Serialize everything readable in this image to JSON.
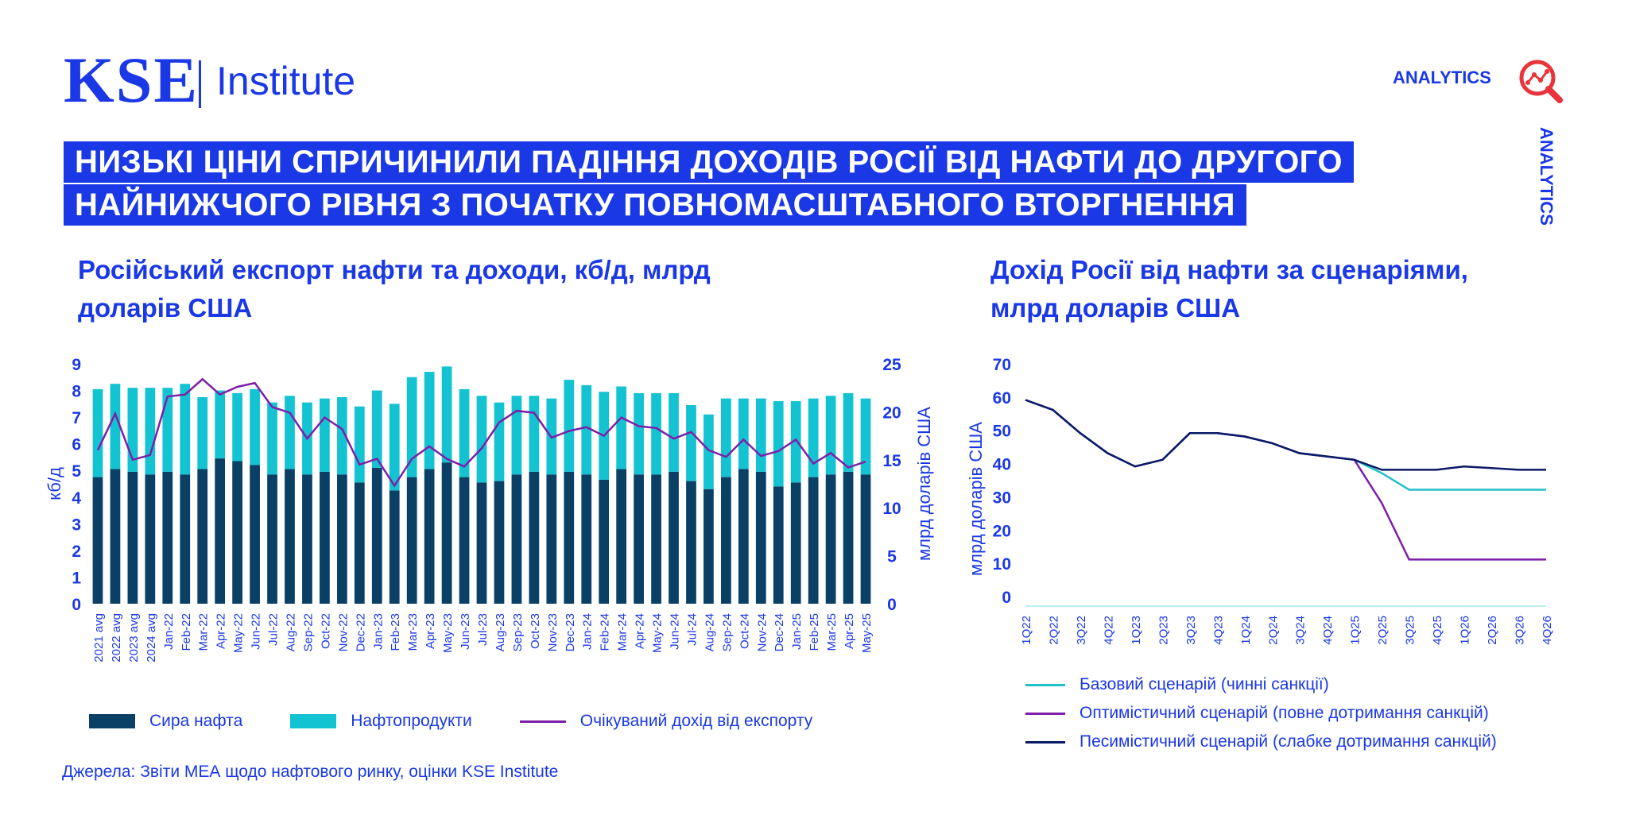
{
  "logo": {
    "kse": "KSE",
    "institute": "Institute"
  },
  "brand": {
    "analytics_top": "ANALYTICS",
    "analytics_side": "ANALYTICS"
  },
  "headline": {
    "line1": "НИЗЬКІ ЦІНИ СПРИЧИНИЛИ ПАДІННЯ ДОХОДІВ РОСІЇ ВІД НАФТИ ДО ДРУГОГО",
    "line2": "НАЙНИЖЧОГО РІВНЯ З ПОЧАТКУ ПОВНОМАСШТАБНОГО ВТОРГНЕННЯ"
  },
  "colors": {
    "brand_blue": "#1a38e6",
    "crude": "#0a3f66",
    "products": "#14c3d2",
    "revenue_line": "#7d1fa8",
    "base": "#22c0c8",
    "optimistic": "#7d1fa8",
    "pessimistic": "#0a1a66"
  },
  "source": "Джерела: Звіти МЕА щодо нафтового ринку, оцінки KSE Institute",
  "chart_data": [
    {
      "type": "bar",
      "title_line1": "Російський експорт нафти та доходи, кб/д, млрд",
      "title_line2": "доларів США",
      "ylabel": "кб/д",
      "y2label": "млрд доларів США",
      "ylim": [
        0,
        9
      ],
      "y2lim": [
        0,
        25
      ],
      "yticks": [
        "0",
        "1",
        "2",
        "3",
        "4",
        "5",
        "6",
        "7",
        "8",
        "9"
      ],
      "y2ticks": [
        "0",
        "5",
        "10",
        "15",
        "20",
        "25"
      ],
      "categories": [
        "2021 avg",
        "2022 avg",
        "2023 avg",
        "2024 avg",
        "Jan-22",
        "Feb-22",
        "Mar-22",
        "Apr-22",
        "May-22",
        "Jun-22",
        "Jul-22",
        "Aug-22",
        "Sep-22",
        "Oct-22",
        "Nov-22",
        "Dec-22",
        "Jan-23",
        "Feb-23",
        "Mar-23",
        "Apr-23",
        "May-23",
        "Jun-23",
        "Jul-23",
        "Aug-23",
        "Sep-23",
        "Oct-23",
        "Nov-23",
        "Dec-23",
        "Jan-24",
        "Feb-24",
        "Mar-24",
        "Apr-24",
        "May-24",
        "Jun-24",
        "Jul-24",
        "Aug-24",
        "Sep-24",
        "Oct-24",
        "Nov-24",
        "Dec-24",
        "Jan-25",
        "Feb-25",
        "Mar-25",
        "Apr-25",
        "May-25"
      ],
      "series": [
        {
          "name": "Сира нафта",
          "kind": "bar",
          "values": [
            4.75,
            5.05,
            4.95,
            4.85,
            4.95,
            4.85,
            5.05,
            5.45,
            5.35,
            5.2,
            4.85,
            5.05,
            4.85,
            4.95,
            4.85,
            4.55,
            5.1,
            4.25,
            4.75,
            5.05,
            5.3,
            4.75,
            4.55,
            4.6,
            4.85,
            4.95,
            4.85,
            4.95,
            4.85,
            4.65,
            5.05,
            4.85,
            4.85,
            4.95,
            4.6,
            4.3,
            4.75,
            5.05,
            4.95,
            4.4,
            4.55,
            4.75,
            4.85,
            4.95,
            4.85
          ]
        },
        {
          "name": "Нафтопродукти",
          "kind": "bar",
          "values": [
            3.3,
            3.2,
            3.15,
            3.25,
            3.15,
            3.4,
            2.7,
            2.55,
            2.55,
            2.85,
            2.7,
            2.75,
            2.7,
            2.75,
            2.9,
            2.85,
            2.9,
            3.25,
            3.75,
            3.65,
            3.6,
            3.3,
            3.25,
            2.95,
            2.95,
            2.85,
            2.85,
            3.45,
            3.35,
            3.3,
            3.1,
            3.05,
            3.05,
            2.95,
            2.85,
            2.8,
            2.95,
            2.65,
            2.75,
            3.2,
            3.05,
            2.95,
            2.95,
            2.95,
            2.85
          ]
        },
        {
          "name": "Очікуваний дохід від експорту",
          "kind": "line",
          "axis": "right",
          "values": [
            16,
            19.8,
            15,
            15.5,
            21.6,
            21.8,
            23.4,
            21.8,
            22.6,
            23,
            20.5,
            19.9,
            17.2,
            19.4,
            18.2,
            14.5,
            15.1,
            12.3,
            15.1,
            16.4,
            15.1,
            14.3,
            16.2,
            18.9,
            20.1,
            19.9,
            17.3,
            18,
            18.4,
            17.5,
            19.4,
            18.5,
            18.3,
            17.2,
            17.9,
            16,
            15.3,
            17.1,
            15.4,
            15.9,
            17.1,
            14.6,
            15.7,
            14.2,
            14.8
          ]
        }
      ]
    },
    {
      "type": "line",
      "title_line1": "Дохід Росії від нафти за сценаріями,",
      "title_line2": "млрд доларів США",
      "ylabel": "млрд доларів США",
      "ylim": [
        0,
        70
      ],
      "yticks": [
        "0",
        "10",
        "20",
        "30",
        "40",
        "50",
        "60",
        "70"
      ],
      "categories": [
        "1Q22",
        "2Q22",
        "3Q22",
        "4Q22",
        "1Q23",
        "2Q23",
        "3Q23",
        "4Q23",
        "1Q24",
        "2Q24",
        "3Q24",
        "4Q24",
        "1Q25",
        "2Q25",
        "3Q25",
        "4Q25",
        "1Q26",
        "2Q26",
        "3Q26",
        "4Q26"
      ],
      "series": [
        {
          "name": "Базовий сценарій (чинні санкції)",
          "values": [
            62,
            59,
            52,
            46,
            42,
            44,
            52,
            52,
            51,
            49,
            46,
            45,
            44,
            40,
            35,
            35,
            35,
            35,
            35,
            35
          ]
        },
        {
          "name": "Оптимістичний сценарій (повне дотримання санкцій)",
          "values": [
            62,
            59,
            52,
            46,
            42,
            44,
            52,
            52,
            51,
            49,
            46,
            45,
            44,
            31,
            14,
            14,
            14,
            14,
            14,
            14
          ]
        },
        {
          "name": "Песимістичний сценарій (слабке дотримання санкцій)",
          "values": [
            62,
            59,
            52,
            46,
            42,
            44,
            52,
            52,
            51,
            49,
            46,
            45,
            44,
            41,
            41,
            41,
            42,
            41.5,
            41,
            41
          ]
        }
      ]
    }
  ]
}
